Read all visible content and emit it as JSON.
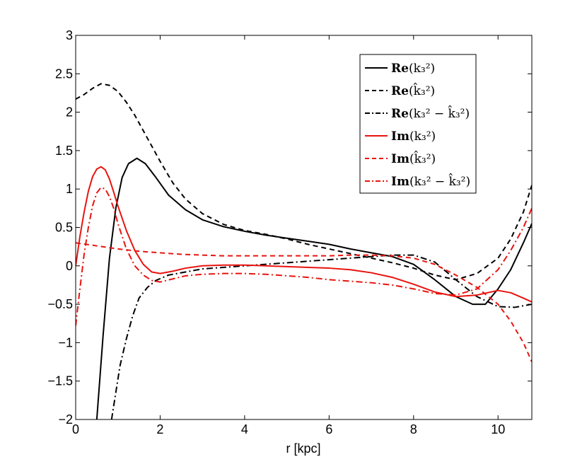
{
  "chart_data": {
    "type": "line",
    "title": "",
    "xlabel": "r [kpc]",
    "ylabel": "",
    "xlim": [
      0,
      10.8
    ],
    "ylim": [
      -2,
      3
    ],
    "xticks": [
      0,
      2,
      4,
      6,
      8,
      10
    ],
    "xtick_labels": [
      "0",
      "2",
      "4",
      "6",
      "8",
      "10"
    ],
    "yticks": [
      -2,
      -1.5,
      -1,
      -0.5,
      0,
      0.5,
      1,
      1.5,
      2,
      2.5,
      3
    ],
    "ytick_labels": [
      "−2",
      "−1.5",
      "−1",
      "−0.5",
      "0",
      "0.5",
      "1",
      "1.5",
      "2",
      "2.5",
      "3"
    ],
    "grid": false,
    "legend_position": "top-right",
    "series": [
      {
        "name": "Re(k3^2)",
        "legend_prefix": "Re",
        "legend_arg": "(k₃²)",
        "color": "#000000",
        "style": "solid",
        "x": [
          0.5,
          0.65,
          0.8,
          0.95,
          1.1,
          1.25,
          1.45,
          1.65,
          1.9,
          2.2,
          2.6,
          3.0,
          3.5,
          4.0,
          4.5,
          5.0,
          5.5,
          6.0,
          6.5,
          7.0,
          7.5,
          8.0,
          8.5,
          9.0,
          9.4,
          9.7,
          10.0,
          10.3,
          10.6,
          10.8
        ],
        "y": [
          -2.0,
          -0.9,
          0.1,
          0.75,
          1.15,
          1.33,
          1.4,
          1.33,
          1.15,
          0.92,
          0.73,
          0.6,
          0.51,
          0.45,
          0.4,
          0.36,
          0.32,
          0.28,
          0.22,
          0.17,
          0.12,
          0.02,
          -0.18,
          -0.4,
          -0.5,
          -0.5,
          -0.3,
          -0.05,
          0.3,
          0.55
        ]
      },
      {
        "name": "Re(k3hat^2)",
        "legend_prefix": "Re",
        "legend_arg": "(k̂₃²)",
        "color": "#000000",
        "style": "dashed",
        "x": [
          0,
          0.2,
          0.4,
          0.6,
          0.8,
          1.0,
          1.2,
          1.4,
          1.6,
          1.8,
          2.0,
          2.3,
          2.6,
          3.0,
          3.5,
          4.0,
          4.5,
          5.0,
          5.5,
          6.0,
          6.5,
          7.0,
          7.5,
          8.0,
          8.5,
          9.0,
          9.5,
          10.0,
          10.3,
          10.6,
          10.8
        ],
        "y": [
          2.17,
          2.23,
          2.31,
          2.37,
          2.35,
          2.27,
          2.13,
          1.96,
          1.76,
          1.56,
          1.36,
          1.08,
          0.87,
          0.68,
          0.54,
          0.46,
          0.41,
          0.35,
          0.28,
          0.22,
          0.16,
          0.1,
          0.04,
          -0.03,
          -0.12,
          -0.18,
          -0.1,
          0.1,
          0.35,
          0.7,
          1.05
        ]
      },
      {
        "name": "Re(k3^2 - k3hat^2)",
        "legend_prefix": "Re",
        "legend_arg": "(k₃² − k̂₃²)",
        "color": "#000000",
        "style": "dashdot",
        "x": [
          0.85,
          0.95,
          1.05,
          1.2,
          1.35,
          1.5,
          1.7,
          1.9,
          2.2,
          2.6,
          3.0,
          3.5,
          4.0,
          4.5,
          5.0,
          5.5,
          6.0,
          6.5,
          7.0,
          7.5,
          8.0,
          8.5,
          9.0,
          9.5,
          10.0,
          10.4,
          10.8
        ],
        "y": [
          -2.0,
          -1.65,
          -1.3,
          -0.95,
          -0.65,
          -0.42,
          -0.28,
          -0.19,
          -0.12,
          -0.08,
          -0.04,
          -0.02,
          0.0,
          0.02,
          0.04,
          0.06,
          0.08,
          0.1,
          0.12,
          0.14,
          0.14,
          0.05,
          -0.18,
          -0.4,
          -0.53,
          -0.54,
          -0.5
        ]
      },
      {
        "name": "Im(k3^2)",
        "legend_prefix": "Im",
        "legend_arg": "(k₃²)",
        "color": "#e8140f",
        "style": "solid",
        "x": [
          0,
          0.1,
          0.2,
          0.3,
          0.4,
          0.5,
          0.6,
          0.7,
          0.8,
          0.9,
          1.0,
          1.2,
          1.4,
          1.6,
          1.8,
          2.0,
          2.3,
          2.6,
          3.0,
          3.5,
          4.0,
          4.5,
          5.0,
          5.5,
          6.0,
          6.5,
          7.0,
          7.5,
          8.0,
          8.5,
          9.0,
          9.5,
          10.0,
          10.3,
          10.6,
          10.8
        ],
        "y": [
          0.0,
          0.38,
          0.7,
          0.97,
          1.16,
          1.26,
          1.29,
          1.25,
          1.13,
          0.96,
          0.78,
          0.46,
          0.2,
          0.02,
          -0.08,
          -0.1,
          -0.07,
          -0.03,
          0.0,
          0.01,
          0.01,
          0.0,
          -0.01,
          -0.02,
          -0.03,
          -0.05,
          -0.09,
          -0.15,
          -0.24,
          -0.34,
          -0.4,
          -0.38,
          -0.32,
          -0.35,
          -0.42,
          -0.47
        ]
      },
      {
        "name": "Im(k3hat^2)",
        "legend_prefix": "Im",
        "legend_arg": "(k̂₃²)",
        "color": "#e8140f",
        "style": "dashed",
        "x": [
          0,
          0.5,
          1.0,
          1.5,
          2.0,
          2.5,
          3.0,
          3.5,
          4.0,
          4.5,
          5.0,
          5.5,
          6.0,
          6.5,
          7.0,
          7.5,
          8.0,
          8.5,
          9.0,
          9.5,
          10.0,
          10.3,
          10.6,
          10.8
        ],
        "y": [
          0.3,
          0.26,
          0.22,
          0.19,
          0.17,
          0.15,
          0.14,
          0.13,
          0.13,
          0.13,
          0.13,
          0.13,
          0.13,
          0.14,
          0.14,
          0.13,
          0.1,
          0.02,
          -0.12,
          -0.28,
          -0.5,
          -0.72,
          -1.0,
          -1.25
        ]
      },
      {
        "name": "Im(k3^2 - k3hat^2)",
        "legend_prefix": "Im",
        "legend_arg": "(k₃² − k̂₃²)",
        "color": "#e8140f",
        "style": "dashdot",
        "x": [
          0,
          0.1,
          0.2,
          0.3,
          0.4,
          0.5,
          0.6,
          0.7,
          0.8,
          0.9,
          1.0,
          1.2,
          1.4,
          1.6,
          1.8,
          2.0,
          2.3,
          2.6,
          3.0,
          3.5,
          4.0,
          4.5,
          5.0,
          5.5,
          6.0,
          6.5,
          7.0,
          7.5,
          8.0,
          8.5,
          9.0,
          9.5,
          10.0,
          10.3,
          10.6,
          10.8
        ],
        "y": [
          -0.78,
          -0.3,
          0.15,
          0.5,
          0.78,
          0.95,
          1.02,
          1.0,
          0.9,
          0.75,
          0.55,
          0.22,
          0.0,
          -0.12,
          -0.19,
          -0.21,
          -0.17,
          -0.13,
          -0.11,
          -0.1,
          -0.1,
          -0.11,
          -0.13,
          -0.15,
          -0.18,
          -0.2,
          -0.22,
          -0.25,
          -0.3,
          -0.36,
          -0.38,
          -0.3,
          -0.05,
          0.2,
          0.5,
          0.75
        ]
      }
    ]
  }
}
